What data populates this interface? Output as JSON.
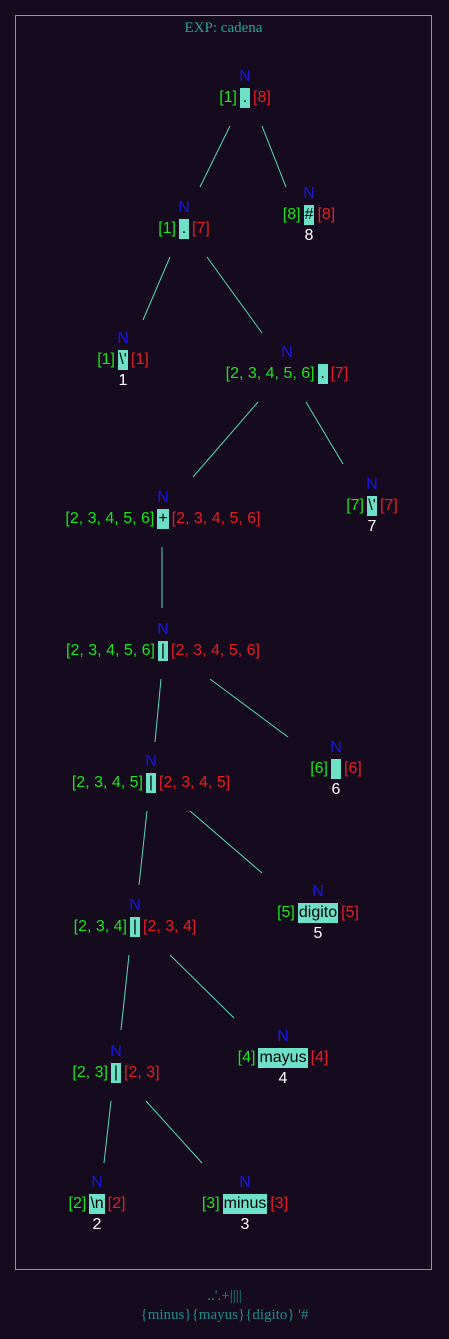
{
  "title": "EXP: cadena",
  "footer": {
    "line1": "..'.+||||",
    "line2": "{minus}{mayus}{digito} '#"
  },
  "colors": {
    "background": "#150a1e",
    "border": "#4ab8a4",
    "edge": "#5ad8c8",
    "nullable": "#1818e6",
    "first": "#1ae61a",
    "last": "#e62020",
    "symbol_bg": "#6ee0c8"
  },
  "nodes": [
    {
      "id": "n1",
      "nullable": "N",
      "first": "[1]",
      "symbol": ".",
      "last": "[8]"
    },
    {
      "id": "n2",
      "nullable": "N",
      "first": "[1]",
      "symbol": ".",
      "last": "[7]"
    },
    {
      "id": "n3",
      "nullable": "N",
      "first": "[8]",
      "symbol": "#",
      "last": "[8]",
      "pos": "8"
    },
    {
      "id": "n4",
      "nullable": "N",
      "first": "[1]",
      "symbol": "\\'",
      "last": "[1]",
      "pos": "1"
    },
    {
      "id": "n5",
      "nullable": "N",
      "first": "[2, 3, 4, 5, 6]",
      "symbol": ".",
      "last": "[7]"
    },
    {
      "id": "n6",
      "nullable": "N",
      "first": "[2, 3, 4, 5, 6]",
      "symbol": "+",
      "last": "[2, 3, 4, 5, 6]"
    },
    {
      "id": "n7",
      "nullable": "N",
      "first": "[7]",
      "symbol": "\\'",
      "last": "[7]",
      "pos": "7"
    },
    {
      "id": "n8",
      "nullable": "N",
      "first": "[2, 3, 4, 5, 6]",
      "symbol": "|",
      "last": "[2, 3, 4, 5, 6]"
    },
    {
      "id": "n9",
      "nullable": "N",
      "first": "[2, 3, 4, 5]",
      "symbol": "|",
      "last": "[2, 3, 4, 5]"
    },
    {
      "id": "n10",
      "nullable": "N",
      "first": "[6]",
      "symbol": " ",
      "last": "[6]",
      "pos": "6"
    },
    {
      "id": "n11",
      "nullable": "N",
      "first": "[2, 3, 4]",
      "symbol": "|",
      "last": "[2, 3, 4]"
    },
    {
      "id": "n12",
      "nullable": "N",
      "first": "[5]",
      "symbol": "digito",
      "last": "[5]",
      "pos": "5"
    },
    {
      "id": "n13",
      "nullable": "N",
      "first": "[2, 3]",
      "symbol": "|",
      "last": "[2, 3]"
    },
    {
      "id": "n14",
      "nullable": "N",
      "first": "[4]",
      "symbol": "mayus",
      "last": "[4]",
      "pos": "4"
    },
    {
      "id": "n15",
      "nullable": "N",
      "first": "[2]",
      "symbol": "\\n",
      "last": "[2]",
      "pos": "2"
    },
    {
      "id": "n16",
      "nullable": "N",
      "first": "[3]",
      "symbol": "minus",
      "last": "[3]",
      "pos": "3"
    }
  ],
  "edges": [
    [
      "n1",
      "n2"
    ],
    [
      "n1",
      "n3"
    ],
    [
      "n2",
      "n4"
    ],
    [
      "n2",
      "n5"
    ],
    [
      "n5",
      "n6"
    ],
    [
      "n5",
      "n7"
    ],
    [
      "n6",
      "n8"
    ],
    [
      "n8",
      "n9"
    ],
    [
      "n8",
      "n10"
    ],
    [
      "n9",
      "n11"
    ],
    [
      "n9",
      "n12"
    ],
    [
      "n11",
      "n13"
    ],
    [
      "n11",
      "n14"
    ],
    [
      "n13",
      "n15"
    ],
    [
      "n13",
      "n16"
    ]
  ]
}
